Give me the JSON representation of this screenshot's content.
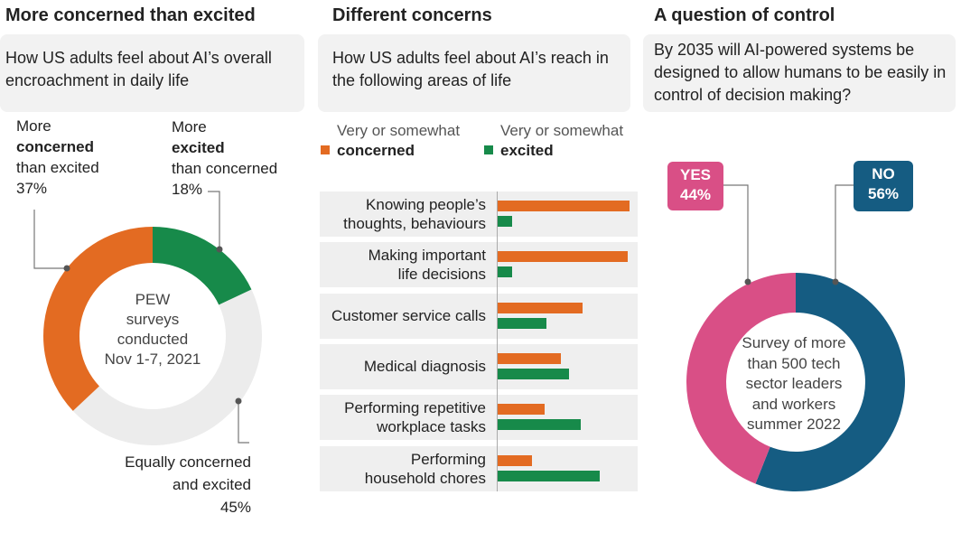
{
  "panels": [
    {
      "title": "More concerned than excited",
      "question": "How US adults feel about AI’s overall encroachment in daily life"
    },
    {
      "title": "Different concerns",
      "question": "How US adults feel about AI’s reach in the following areas of life"
    },
    {
      "title": "A question of control",
      "question": "By 2035 will AI-powered systems be designed to allow humans to be easily in control of decision making?"
    }
  ],
  "colors": {
    "concerned": "#e36b22",
    "excited": "#178a4a",
    "equal": "#ececec",
    "yes": "#d94f86",
    "no": "#155c82"
  },
  "chart_data": [
    {
      "type": "pie",
      "center_text": [
        "PEW",
        "surveys",
        "conducted",
        "Nov 1-7, 2021"
      ],
      "slices": [
        {
          "label_pre": "More",
          "label_bold": "excited",
          "label_post": "than concerned",
          "value": 18,
          "value_text": "18%",
          "color": "#178a4a"
        },
        {
          "label_pre": "",
          "label_bold": "",
          "label_post": "Equally concerned and excited",
          "value": 45,
          "value_text": "45%",
          "color": "#ececec"
        },
        {
          "label_pre": "More",
          "label_bold": "concerned",
          "label_post": "than excited",
          "value": 37,
          "value_text": "37%",
          "color": "#e36b22"
        }
      ]
    },
    {
      "type": "bar",
      "legend": [
        {
          "pre": "Very or somewhat",
          "bold": "concerned",
          "color": "#e36b22"
        },
        {
          "pre": "Very or somewhat",
          "bold": "excited",
          "color": "#178a4a"
        }
      ],
      "categories": [
        [
          "Knowing people’s",
          "thoughts, behaviours"
        ],
        [
          "Making important",
          "life decisions"
        ],
        [
          "Customer service calls"
        ],
        [
          "Medical diagnosis"
        ],
        [
          "Performing repetitive",
          "workplace tasks"
        ],
        [
          "Performing",
          "household chores"
        ]
      ],
      "series": [
        {
          "name": "concerned",
          "values": [
            81,
            80,
            52,
            39,
            29,
            21
          ]
        },
        {
          "name": "excited",
          "values": [
            9,
            9,
            30,
            44,
            51,
            63
          ]
        }
      ],
      "xlim": [
        0,
        100
      ]
    },
    {
      "type": "pie",
      "center_text": [
        "Survey of more",
        "than 500 tech",
        "sector leaders",
        "and workers",
        "summer 2022"
      ],
      "slices": [
        {
          "label": "NO",
          "value": 56,
          "value_text": "56%",
          "color": "#155c82"
        },
        {
          "label": "YES",
          "value": 44,
          "value_text": "44%",
          "color": "#d94f86"
        }
      ]
    }
  ]
}
